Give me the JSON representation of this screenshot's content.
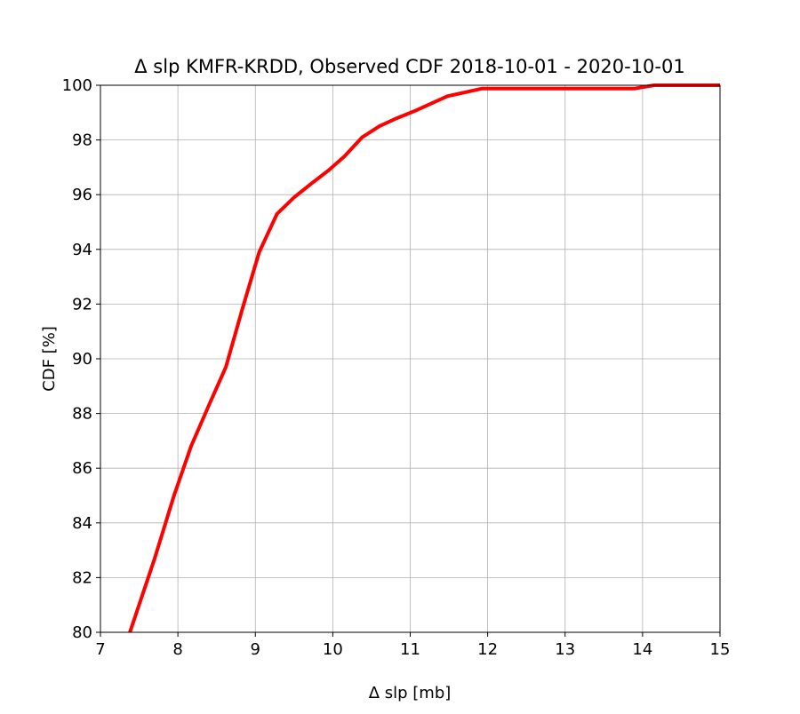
{
  "chart_data": {
    "type": "line",
    "title": "Δ slp KMFR-KRDD, Observed CDF 2018-10-01 - 2020-10-01",
    "xlabel": "Δ slp [mb]",
    "ylabel": "CDF [%]",
    "xlim": [
      7,
      15
    ],
    "ylim": [
      80,
      100
    ],
    "xticks": [
      7,
      8,
      9,
      10,
      11,
      12,
      13,
      14,
      15
    ],
    "yticks": [
      80,
      82,
      84,
      86,
      88,
      90,
      92,
      94,
      96,
      98,
      100
    ],
    "grid": true,
    "line_color": "#ff0000",
    "series": [
      {
        "x": [
          7.38,
          7.7,
          7.95,
          8.17,
          8.4,
          8.62,
          8.83,
          9.05,
          9.28,
          9.5,
          9.72,
          9.95,
          10.15,
          10.38,
          10.6,
          10.83,
          11.05,
          11.48,
          11.93,
          12.4,
          12.9,
          13.4,
          13.9,
          14.15,
          14.6,
          15.0
        ],
        "y": [
          80.0,
          82.7,
          85.0,
          86.8,
          88.3,
          89.7,
          91.8,
          93.9,
          95.3,
          95.9,
          96.4,
          96.9,
          97.4,
          98.1,
          98.5,
          98.8,
          99.05,
          99.6,
          99.88,
          99.88,
          99.88,
          99.88,
          99.88,
          100.0,
          100.0,
          100.0
        ]
      }
    ]
  }
}
